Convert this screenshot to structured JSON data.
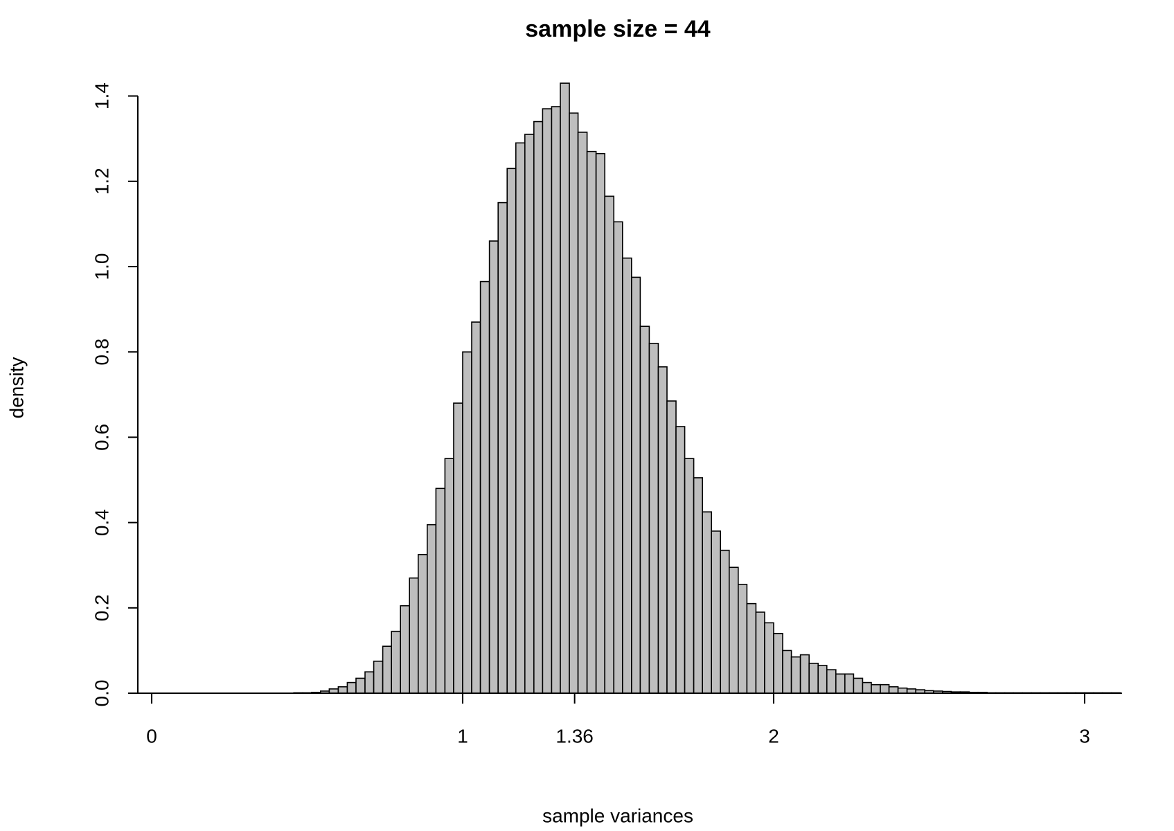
{
  "chart_data": {
    "type": "histogram",
    "title": "sample size = 44",
    "xlabel": "sample variances",
    "ylabel": "density",
    "bins": [
      0.457,
      0.486,
      0.514,
      0.543,
      0.571,
      0.6,
      0.629,
      0.657,
      0.686,
      0.714,
      0.743,
      0.771,
      0.8,
      0.829,
      0.857,
      0.886,
      0.914,
      0.943,
      0.971,
      1,
      1.029,
      1.057,
      1.086,
      1.114,
      1.143,
      1.171,
      1.2,
      1.229,
      1.257,
      1.286,
      1.314,
      1.343,
      1.371,
      1.4,
      1.429,
      1.457,
      1.486,
      1.514,
      1.543,
      1.571,
      1.6,
      1.629,
      1.657,
      1.686,
      1.714,
      1.743,
      1.771,
      1.8,
      1.829,
      1.857,
      1.886,
      1.914,
      1.943,
      1.971,
      2,
      2.029,
      2.057,
      2.086,
      2.114,
      2.143,
      2.171,
      2.2,
      2.229,
      2.257,
      2.286,
      2.314,
      2.343,
      2.371,
      2.4,
      2.429,
      2.457,
      2.486,
      2.514,
      2.543,
      2.571,
      2.6,
      2.629,
      2.657,
      2.686,
      2.714,
      2.743,
      2.771,
      2.8,
      2.829,
      2.857,
      2.886,
      2.914,
      2.943,
      2.971,
      3,
      3.029,
      3.057,
      3.086,
      3.114
    ],
    "values": [
      0.001,
      0.001,
      0.002,
      0.005,
      0.01,
      0.015,
      0.025,
      0.035,
      0.05,
      0.075,
      0.11,
      0.145,
      0.205,
      0.27,
      0.325,
      0.395,
      0.48,
      0.55,
      0.68,
      0.8,
      0.87,
      0.965,
      1.06,
      1.15,
      1.23,
      1.29,
      1.31,
      1.34,
      1.37,
      1.375,
      1.43,
      1.36,
      1.315,
      1.27,
      1.265,
      1.165,
      1.105,
      1.02,
      0.975,
      0.86,
      0.82,
      0.765,
      0.685,
      0.625,
      0.55,
      0.505,
      0.425,
      0.38,
      0.335,
      0.295,
      0.255,
      0.21,
      0.19,
      0.165,
      0.14,
      0.1,
      0.085,
      0.09,
      0.07,
      0.065,
      0.055,
      0.045,
      0.045,
      0.035,
      0.025,
      0.02,
      0.02,
      0.015,
      0.012,
      0.01,
      0.008,
      0.006,
      0.005,
      0.004,
      0.003,
      0.003,
      0.002,
      0.002,
      0.001,
      0.001,
      0.001,
      0.001,
      0.001,
      0.001,
      0.001,
      0.001,
      0.001,
      0.001,
      0.001,
      0.001,
      0.001,
      0.001,
      0.001
    ],
    "color": "#bebebe",
    "xlim": [
      0,
      3.12
    ],
    "xticks": [
      0,
      1,
      1.36,
      2,
      3
    ],
    "ylim": [
      0,
      1.45
    ],
    "yticks": [
      {
        "value": 0,
        "label": "0.0"
      },
      0.2,
      0.4,
      0.6,
      0.8,
      {
        "value": 1,
        "label": "1.0"
      },
      1.2,
      1.4
    ]
  }
}
